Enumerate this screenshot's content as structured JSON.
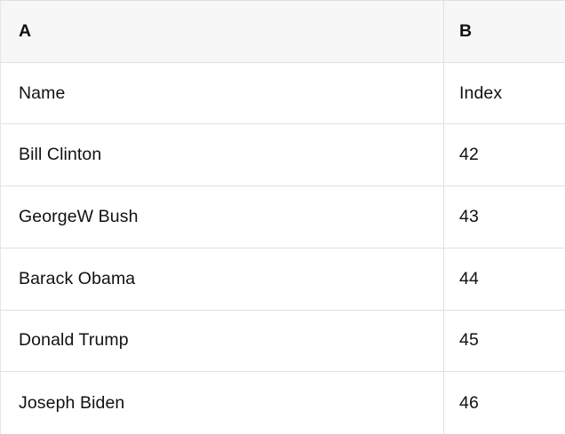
{
  "table": {
    "column_headers": [
      {
        "label": "A"
      },
      {
        "label": "B"
      }
    ],
    "rows": [
      {
        "a": "Name",
        "b": "Index"
      },
      {
        "a": "Bill Clinton",
        "b": "42"
      },
      {
        "a": "GeorgeW Bush",
        "b": "43"
      },
      {
        "a": "Barack Obama",
        "b": "44"
      },
      {
        "a": "Donald Trump",
        "b": "45"
      },
      {
        "a": "Joseph Biden",
        "b": "46"
      }
    ]
  },
  "colors": {
    "header_background": "#f7f7f7",
    "row_background": "#ffffff",
    "border": "#e0e0e0",
    "text": "#111111"
  }
}
